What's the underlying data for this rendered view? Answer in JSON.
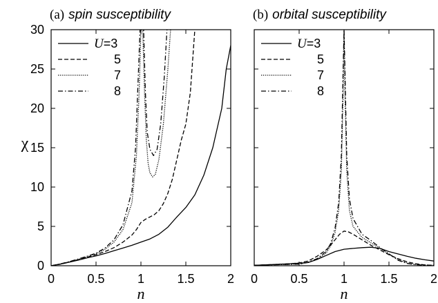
{
  "figure": {
    "ylabel": "χ",
    "xlabel": "n"
  },
  "chart_data": [
    {
      "type": "line",
      "title_prefix": "(a)",
      "title": "spin susceptibility",
      "xlabel": "n",
      "ylabel": "χ",
      "xlim": [
        0,
        2
      ],
      "ylim": [
        0,
        30
      ],
      "xticks": [
        "0",
        "0.5",
        "1",
        "1.5",
        "2"
      ],
      "yticks": [
        "0",
        "5",
        "10",
        "15",
        "20",
        "25",
        "30"
      ],
      "legend": {
        "position": "top-left",
        "prefix": "U",
        "entries": [
          "=3",
          "5",
          "7",
          "8"
        ]
      },
      "series": [
        {
          "name": "U=3",
          "dash": "solid",
          "points": [
            [
              0,
              0
            ],
            [
              0.1,
              0.2
            ],
            [
              0.2,
              0.45
            ],
            [
              0.3,
              0.7
            ],
            [
              0.4,
              1.0
            ],
            [
              0.5,
              1.25
            ],
            [
              0.6,
              1.55
            ],
            [
              0.7,
              1.9
            ],
            [
              0.8,
              2.25
            ],
            [
              0.9,
              2.6
            ],
            [
              1.0,
              3.0
            ],
            [
              1.1,
              3.4
            ],
            [
              1.2,
              4.0
            ],
            [
              1.3,
              4.9
            ],
            [
              1.4,
              6.2
            ],
            [
              1.5,
              7.4
            ],
            [
              1.6,
              9.0
            ],
            [
              1.7,
              11.5
            ],
            [
              1.8,
              15.0
            ],
            [
              1.9,
              20.0
            ],
            [
              1.95,
              25.0
            ],
            [
              2.0,
              28.0
            ]
          ]
        },
        {
          "name": "5",
          "dash": "dash",
          "points": [
            [
              0,
              0
            ],
            [
              0.1,
              0.2
            ],
            [
              0.2,
              0.45
            ],
            [
              0.3,
              0.75
            ],
            [
              0.4,
              1.05
            ],
            [
              0.5,
              1.4
            ],
            [
              0.6,
              1.8
            ],
            [
              0.7,
              2.3
            ],
            [
              0.8,
              3.0
            ],
            [
              0.9,
              3.9
            ],
            [
              0.95,
              4.6
            ],
            [
              1.0,
              5.5
            ],
            [
              1.05,
              5.9
            ],
            [
              1.1,
              6.2
            ],
            [
              1.15,
              6.5
            ],
            [
              1.2,
              7.0
            ],
            [
              1.25,
              7.9
            ],
            [
              1.3,
              9.2
            ],
            [
              1.35,
              11.0
            ],
            [
              1.4,
              13.5
            ],
            [
              1.45,
              16.0
            ],
            [
              1.5,
              18.0
            ],
            [
              1.55,
              22.0
            ],
            [
              1.6,
              30.0
            ]
          ]
        },
        {
          "name": "7",
          "dash": "dot",
          "points": [
            [
              0,
              0
            ],
            [
              0.1,
              0.2
            ],
            [
              0.2,
              0.5
            ],
            [
              0.3,
              0.8
            ],
            [
              0.4,
              1.15
            ],
            [
              0.5,
              1.5
            ],
            [
              0.6,
              2.1
            ],
            [
              0.7,
              3.0
            ],
            [
              0.8,
              4.6
            ],
            [
              0.9,
              8.0
            ],
            [
              0.95,
              14.0
            ],
            [
              0.98,
              22.0
            ],
            [
              1.0,
              30.0
            ],
            [
              1.02,
              30.0
            ],
            [
              1.04,
              22.0
            ],
            [
              1.06,
              16.0
            ],
            [
              1.08,
              13.0
            ],
            [
              1.1,
              11.8
            ],
            [
              1.13,
              11.3
            ],
            [
              1.16,
              11.6
            ],
            [
              1.2,
              13.5
            ],
            [
              1.25,
              18.0
            ],
            [
              1.3,
              25.0
            ],
            [
              1.33,
              30.0
            ]
          ]
        },
        {
          "name": "8",
          "dash": "dashdot",
          "points": [
            [
              0,
              0
            ],
            [
              0.1,
              0.22
            ],
            [
              0.2,
              0.52
            ],
            [
              0.3,
              0.85
            ],
            [
              0.4,
              1.2
            ],
            [
              0.5,
              1.6
            ],
            [
              0.6,
              2.25
            ],
            [
              0.7,
              3.3
            ],
            [
              0.8,
              5.2
            ],
            [
              0.9,
              9.5
            ],
            [
              0.94,
              15.0
            ],
            [
              0.97,
              24.0
            ],
            [
              0.99,
              30.0
            ],
            [
              1.03,
              30.0
            ],
            [
              1.05,
              22.0
            ],
            [
              1.07,
              17.0
            ],
            [
              1.1,
              14.8
            ],
            [
              1.14,
              14.0
            ],
            [
              1.18,
              14.8
            ],
            [
              1.22,
              18.0
            ],
            [
              1.26,
              24.0
            ],
            [
              1.29,
              30.0
            ]
          ]
        }
      ]
    },
    {
      "type": "line",
      "title_prefix": "(b)",
      "title": "orbital susceptibility",
      "xlabel": "n",
      "xlim": [
        0,
        2
      ],
      "ylim": [
        0,
        30
      ],
      "xticks": [
        "0",
        "0.5",
        "1",
        "1.5",
        "2"
      ],
      "legend": {
        "position": "top-left",
        "prefix": "U",
        "entries": [
          "=3",
          "5",
          "7",
          "8"
        ]
      },
      "series": [
        {
          "name": "U=3",
          "dash": "solid",
          "points": [
            [
              0,
              0.05
            ],
            [
              0.2,
              0.15
            ],
            [
              0.4,
              0.25
            ],
            [
              0.6,
              0.4
            ],
            [
              0.7,
              0.8
            ],
            [
              0.8,
              1.3
            ],
            [
              0.9,
              1.8
            ],
            [
              1.0,
              2.1
            ],
            [
              1.1,
              2.2
            ],
            [
              1.2,
              2.3
            ],
            [
              1.3,
              2.35
            ],
            [
              1.4,
              2.2
            ],
            [
              1.5,
              1.8
            ],
            [
              1.6,
              1.5
            ],
            [
              1.7,
              1.2
            ],
            [
              1.8,
              0.95
            ],
            [
              1.9,
              0.75
            ],
            [
              2.0,
              0.6
            ]
          ]
        },
        {
          "name": "5",
          "dash": "dash",
          "points": [
            [
              0,
              0.05
            ],
            [
              0.2,
              0.15
            ],
            [
              0.4,
              0.25
            ],
            [
              0.5,
              0.35
            ],
            [
              0.6,
              0.6
            ],
            [
              0.7,
              1.2
            ],
            [
              0.8,
              2.0
            ],
            [
              0.85,
              2.6
            ],
            [
              0.9,
              3.3
            ],
            [
              0.95,
              4.0
            ],
            [
              1.0,
              4.4
            ],
            [
              1.05,
              4.3
            ],
            [
              1.1,
              4.0
            ],
            [
              1.2,
              3.3
            ],
            [
              1.3,
              2.6
            ],
            [
              1.4,
              2.0
            ],
            [
              1.5,
              1.4
            ],
            [
              1.6,
              0.9
            ],
            [
              1.7,
              0.5
            ],
            [
              1.8,
              0.25
            ],
            [
              1.9,
              0.1
            ],
            [
              2.0,
              0.05
            ]
          ]
        },
        {
          "name": "7",
          "dash": "dot",
          "points": [
            [
              0,
              0.05
            ],
            [
              0.3,
              0.15
            ],
            [
              0.5,
              0.2
            ],
            [
              0.6,
              0.4
            ],
            [
              0.7,
              0.8
            ],
            [
              0.8,
              1.6
            ],
            [
              0.85,
              2.5
            ],
            [
              0.9,
              4.2
            ],
            [
              0.94,
              7.0
            ],
            [
              0.97,
              12.0
            ],
            [
              0.99,
              22.0
            ],
            [
              1.0,
              30.0
            ],
            [
              1.01,
              22.0
            ],
            [
              1.03,
              12.0
            ],
            [
              1.06,
              7.0
            ],
            [
              1.1,
              5.0
            ],
            [
              1.2,
              3.6
            ],
            [
              1.3,
              2.9
            ],
            [
              1.4,
              2.2
            ],
            [
              1.5,
              1.5
            ],
            [
              1.6,
              0.8
            ],
            [
              1.7,
              0.35
            ],
            [
              1.8,
              0.15
            ],
            [
              2.0,
              0.05
            ]
          ]
        },
        {
          "name": "8",
          "dash": "dashdot",
          "points": [
            [
              0,
              0.05
            ],
            [
              0.3,
              0.15
            ],
            [
              0.5,
              0.2
            ],
            [
              0.6,
              0.45
            ],
            [
              0.7,
              0.9
            ],
            [
              0.8,
              1.8
            ],
            [
              0.85,
              2.8
            ],
            [
              0.9,
              4.8
            ],
            [
              0.94,
              8.0
            ],
            [
              0.97,
              14.0
            ],
            [
              0.99,
              25.0
            ],
            [
              1.0,
              30.0
            ],
            [
              1.01,
              25.0
            ],
            [
              1.03,
              14.0
            ],
            [
              1.06,
              8.5
            ],
            [
              1.1,
              6.0
            ],
            [
              1.2,
              4.0
            ],
            [
              1.3,
              3.2
            ],
            [
              1.4,
              2.3
            ],
            [
              1.5,
              1.5
            ],
            [
              1.6,
              0.7
            ],
            [
              1.7,
              0.3
            ],
            [
              1.8,
              0.12
            ],
            [
              2.0,
              0.05
            ]
          ]
        }
      ]
    }
  ]
}
